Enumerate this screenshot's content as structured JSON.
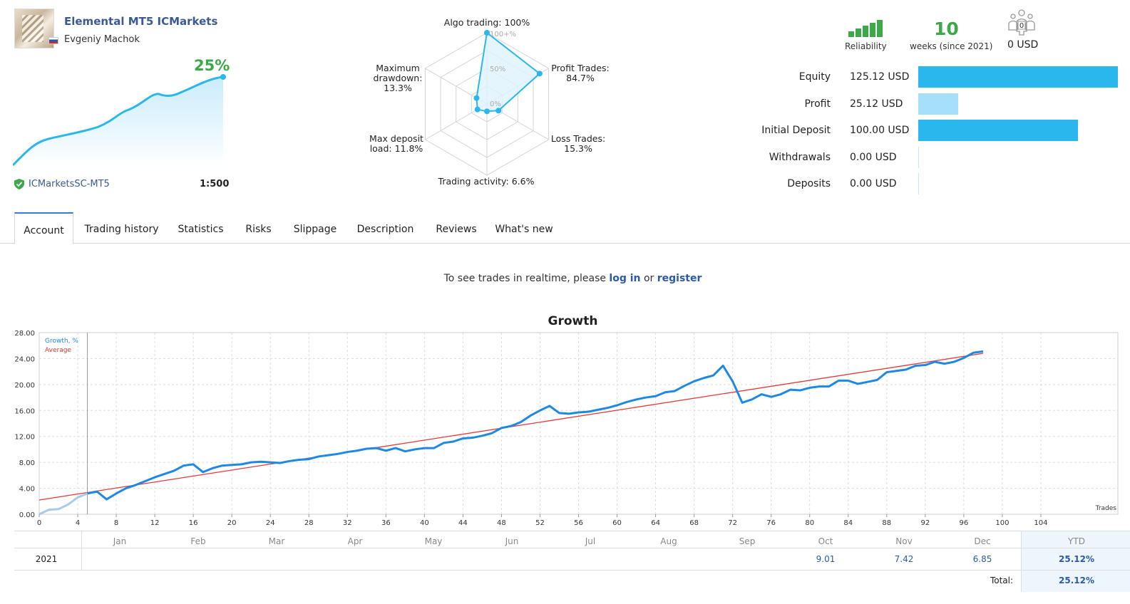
{
  "signal": {
    "name": "Elemental MT5 ICMarkets",
    "author": "Evgeniy Machok",
    "growth": "25%",
    "broker": "ICMarketsSC-MT5",
    "leverage": "1:500"
  },
  "radar": {
    "labels": {
      "algo": "Algo trading: 100%",
      "profit": "Profit Trades:\n84.7%",
      "loss": "Loss Trades:\n15.3%",
      "activity": "Trading activity: 6.6%",
      "deposit_load": "Max deposit\nload: 11.8%",
      "drawdown": "Maximum\ndrawdown:\n13.3%"
    },
    "scale": {
      "top": "100+%",
      "mid": "50%",
      "zero": "0%"
    },
    "values": {
      "algo": 100,
      "profit": 84.7,
      "loss": 15.3,
      "activity": 6.6,
      "deposit_load": 11.8,
      "drawdown": 13.3
    }
  },
  "stats": {
    "reliability_label": "Reliability",
    "reliability_level": 5,
    "weeks": "10",
    "weeks_label": "weeks (since 2021)",
    "subscribers": "0",
    "subscribers_usd": "0 USD"
  },
  "financials": [
    {
      "label": "Equity",
      "value": "125.12 USD",
      "amount": 125.12,
      "color": "#2ab7ee"
    },
    {
      "label": "Profit",
      "value": "25.12 USD",
      "amount": 25.12,
      "color": "#a6e0f8"
    },
    {
      "label": "Initial Deposit",
      "value": "100.00 USD",
      "amount": 100.0,
      "color": "#2ab7ee"
    },
    {
      "label": "Withdrawals",
      "value": "0.00 USD",
      "amount": 0,
      "color": "#a6e0f8"
    },
    {
      "label": "Deposits",
      "value": "0.00 USD",
      "amount": 0,
      "color": "#a6e0f8"
    }
  ],
  "tabs": [
    "Account",
    "Trading history",
    "Statistics",
    "Risks",
    "Slippage",
    "Description",
    "Reviews",
    "What's new"
  ],
  "active_tab": 0,
  "realtime": {
    "prefix": "To see trades in realtime, please ",
    "login": "log in",
    "or": " or ",
    "register": "register"
  },
  "chart_data": {
    "type": "line",
    "title": "Growth",
    "xlabel": "Trades",
    "legend": [
      "Growth, %",
      "Average"
    ],
    "xlim": [
      0,
      112
    ],
    "ylim": [
      0,
      28
    ],
    "x_ticks": [
      0,
      4,
      8,
      12,
      16,
      20,
      24,
      28,
      32,
      36,
      40,
      44,
      48,
      52,
      56,
      60,
      64,
      68,
      72,
      76,
      80,
      84,
      88,
      92,
      96,
      100,
      104
    ],
    "y_ticks": [
      "0.00",
      "4.00",
      "8.00",
      "12.00",
      "16.00",
      "20.00",
      "24.00",
      "28.00"
    ],
    "series": [
      {
        "name": "Growth, %",
        "color": "#1e88e5",
        "x": [
          0,
          1,
          2,
          3,
          4,
          5,
          6,
          7,
          8,
          9,
          10,
          12,
          14,
          15,
          16,
          17,
          18,
          19,
          20,
          21,
          22,
          23,
          24,
          25,
          26,
          27,
          28,
          29,
          30,
          31,
          32,
          33,
          34,
          35,
          36,
          37,
          38,
          39,
          40,
          41,
          42,
          43,
          44,
          45,
          46,
          47,
          48,
          49,
          50,
          51,
          52,
          53,
          54,
          55,
          56,
          57,
          58,
          59,
          60,
          61,
          62,
          63,
          64,
          65,
          66,
          67,
          68,
          69,
          70,
          71,
          72,
          73,
          74,
          75,
          76,
          77,
          78,
          79,
          80,
          81,
          82,
          83,
          84,
          85,
          86,
          87,
          88,
          89,
          90,
          91,
          92,
          93,
          94,
          95,
          96,
          97,
          98
        ],
        "y": [
          0,
          0.7,
          0.8,
          1.5,
          2.6,
          3.2,
          3.5,
          2.3,
          3.2,
          4.0,
          4.5,
          5.7,
          6.7,
          7.5,
          7.7,
          6.5,
          7.1,
          7.5,
          7.6,
          7.7,
          8.0,
          8.1,
          8.0,
          7.9,
          8.2,
          8.4,
          8.5,
          8.9,
          9.1,
          9.3,
          9.6,
          9.8,
          10.1,
          10.2,
          9.8,
          10.2,
          9.7,
          10.0,
          10.2,
          10.2,
          11.0,
          11.2,
          11.7,
          11.8,
          12.1,
          12.5,
          13.3,
          13.6,
          14.2,
          15.2,
          16.0,
          16.7,
          15.6,
          15.5,
          15.7,
          15.8,
          16.1,
          16.4,
          16.8,
          17.3,
          17.7,
          18.0,
          18.2,
          18.8,
          19.0,
          19.8,
          20.5,
          21.0,
          21.4,
          22.9,
          20.5,
          17.2,
          17.7,
          18.5,
          18.1,
          18.5,
          19.2,
          19.1,
          19.5,
          19.7,
          19.7,
          20.6,
          20.6,
          20.1,
          20.4,
          20.7,
          21.9,
          22.1,
          22.3,
          22.9,
          23.0,
          23.5,
          23.2,
          23.5,
          24.1,
          24.9,
          25.1
        ],
        "x_marker_blue_from": 5
      },
      {
        "name": "Average",
        "color": "#e53935",
        "x": [
          0,
          98
        ],
        "y": [
          2.2,
          24.8
        ]
      }
    ]
  },
  "monthly": {
    "months": [
      "Jan",
      "Feb",
      "Mar",
      "Apr",
      "May",
      "Jun",
      "Jul",
      "Aug",
      "Sep",
      "Oct",
      "Nov",
      "Dec"
    ],
    "ytd_header": "YTD",
    "year": "2021",
    "values": [
      "",
      "",
      "",
      "",
      "",
      "",
      "",
      "",
      "",
      "9.01",
      "7.42",
      "6.85"
    ],
    "ytd": "25.12%",
    "total_label": "Total:",
    "total": "25.12%"
  }
}
